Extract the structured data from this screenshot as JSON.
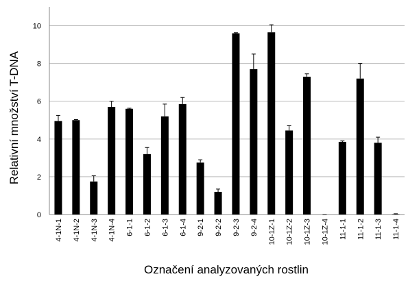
{
  "chart_data": {
    "type": "bar",
    "categories": [
      "4-1N-1",
      "4-1N-2",
      "4-1N-3",
      "4-1N-4",
      "6-1-1",
      "6-1-2",
      "6-1-3",
      "6-1-4",
      "9-2-1",
      "9-2-2",
      "9-2-3",
      "9-2-4",
      "10-1Z-1",
      "10-1Z-2",
      "10-1Z-3",
      "10-1Z-4",
      "11-1-1",
      "11-1-2",
      "11-1-3",
      "11-1-4"
    ],
    "values": [
      4.95,
      5.0,
      1.75,
      5.7,
      5.6,
      3.2,
      5.2,
      5.85,
      2.75,
      1.2,
      9.6,
      7.7,
      9.65,
      4.45,
      7.3,
      0,
      3.85,
      7.2,
      3.8,
      0.02
    ],
    "errors": [
      0.3,
      0.03,
      0.3,
      0.3,
      0.03,
      0.35,
      0.65,
      0.35,
      0.15,
      0.15,
      0.03,
      0.8,
      0.4,
      0.25,
      0.15,
      0,
      0.05,
      0.8,
      0.3,
      0.02
    ],
    "color": "#000000",
    "ylim": [
      0,
      11
    ],
    "yticks": [
      0,
      2,
      4,
      6,
      8,
      10
    ],
    "grid": true,
    "xlabel": "Označení analyzovaných rostlin",
    "ylabel": "Relativní množství T-DNA"
  }
}
